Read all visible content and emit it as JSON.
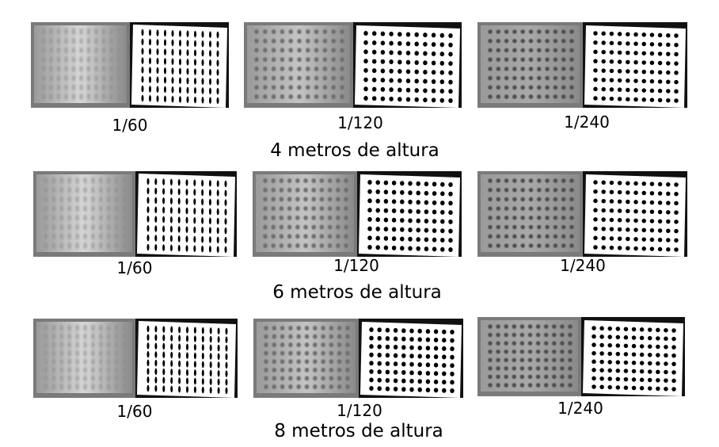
{
  "rows": [
    {
      "caption": "4 metros de altura",
      "panels": [
        {
          "label": "1/60"
        },
        {
          "label": "1/120"
        },
        {
          "label": "1/240"
        }
      ]
    },
    {
      "caption": "6 metros de altura",
      "panels": [
        {
          "label": "1/60"
        },
        {
          "label": "1/120"
        },
        {
          "label": "1/240"
        }
      ]
    },
    {
      "caption": "8 metros de altura",
      "panels": [
        {
          "label": "1/60"
        },
        {
          "label": "1/120"
        },
        {
          "label": "1/240"
        }
      ]
    }
  ],
  "colors": {
    "background": "#ffffff",
    "gray_board": "#b8b8b8",
    "gray_dot": "#6a6a6a",
    "binary_board": "#ffffff",
    "binary_dot": "#000000",
    "frame_dark": "#111111"
  }
}
